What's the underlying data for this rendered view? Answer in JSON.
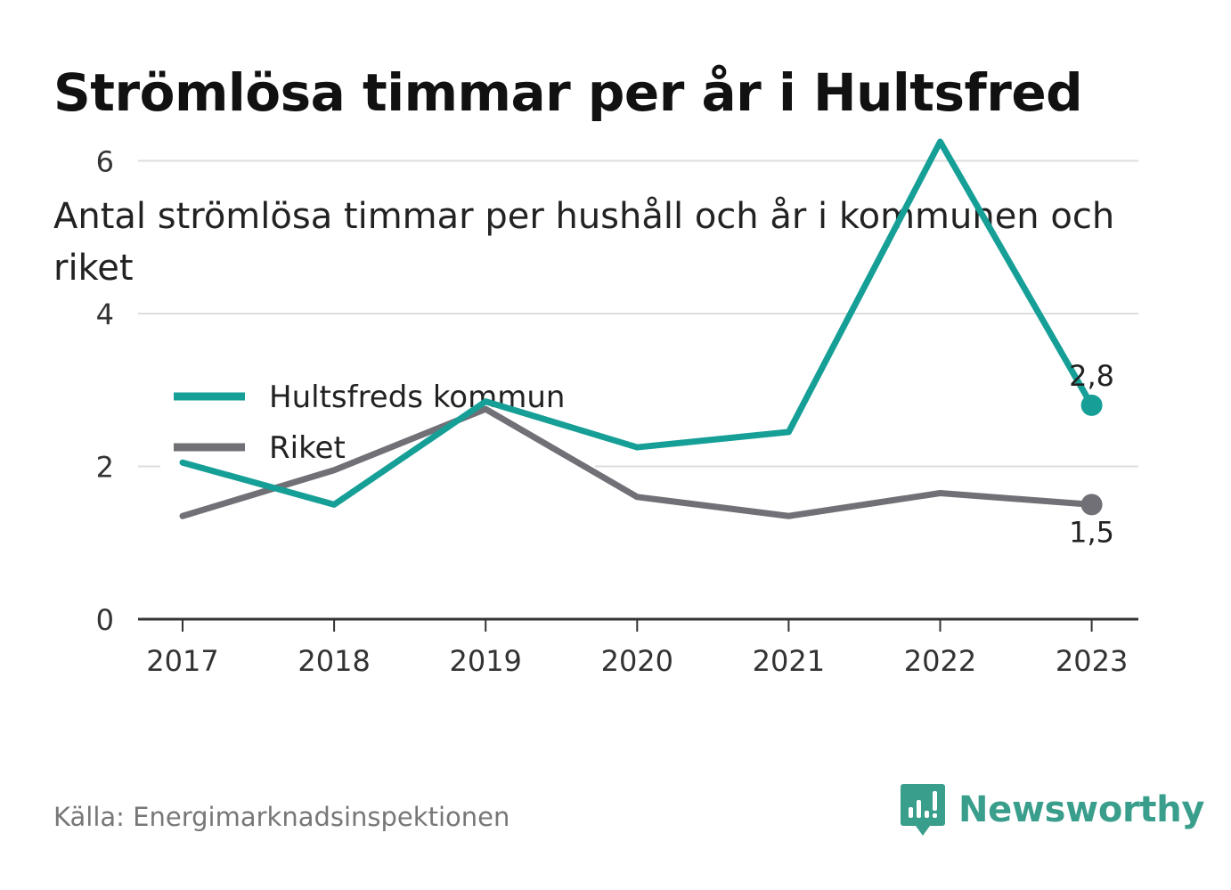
{
  "title": "Strömlösa timmar per år i Hultsfred",
  "subtitle": "Antal strömlösa timmar per hushåll och år i kommunen och riket",
  "source": "Källa: Energimarknadsinspektionen",
  "brand": {
    "name": "Newsworthy",
    "icon": "newsworthy-logo-icon",
    "color": "#3a9e8c"
  },
  "colors": {
    "hultsfred": "#169f97",
    "riket": "#707076",
    "grid": "#dddddd",
    "axis": "#333333"
  },
  "chart_data": {
    "type": "line",
    "x": [
      "2017",
      "2018",
      "2019",
      "2020",
      "2021",
      "2022",
      "2023"
    ],
    "yticks": [
      "0",
      "2",
      "4",
      "6"
    ],
    "ylim": [
      0,
      6.6
    ],
    "grid": true,
    "legend_position": "top-left",
    "series": [
      {
        "name": "Hultsfreds kommun",
        "values": [
          2.05,
          1.5,
          2.85,
          2.25,
          2.45,
          6.25,
          2.8
        ],
        "end_label": "2,8"
      },
      {
        "name": "Riket",
        "values": [
          1.35,
          1.95,
          2.75,
          1.6,
          1.35,
          1.65,
          1.5
        ],
        "end_label": "1,5"
      }
    ]
  }
}
